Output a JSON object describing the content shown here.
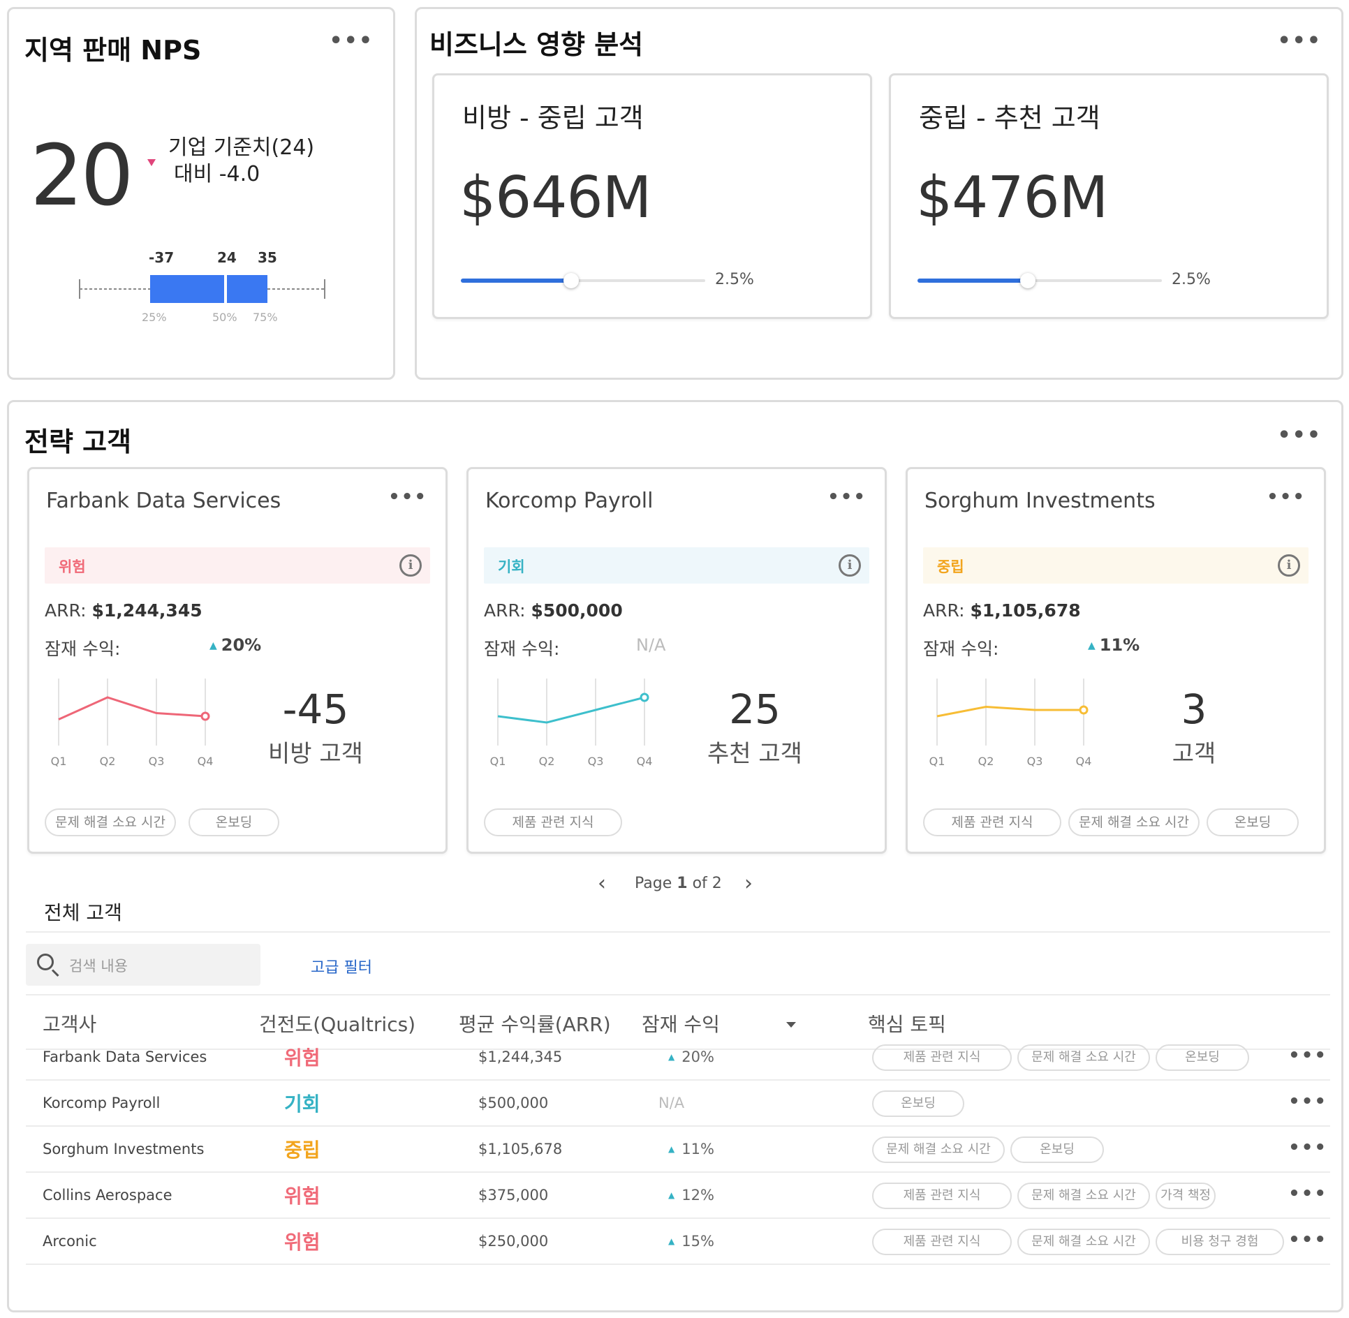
{
  "nps": {
    "title": "지역 판매 NPS",
    "score": "20",
    "compare_line1": "기업 기준치(24)",
    "compare_line2": "대비 -4.0",
    "box_labels": [
      "-37",
      "24",
      "35"
    ],
    "box_pct_labels": [
      "25%",
      "50%",
      "75%"
    ],
    "box_colors": {
      "box": "#3a78f2",
      "whisker": "#888888"
    }
  },
  "business": {
    "title": "비즈니스 영향 분석",
    "cards": [
      {
        "subtitle": "비방 - 중립 고객",
        "value": "$646M",
        "slider_value": "2.5%",
        "slider_fill": 0.45
      },
      {
        "subtitle": "중립 - 추천 고객",
        "value": "$476M",
        "slider_value": "2.5%",
        "slider_fill": 0.45
      }
    ]
  },
  "strategic": {
    "title": "전략 고객",
    "accounts": [
      {
        "name": "Farbank Data Services",
        "status": "위험",
        "status_color": "#f06a78",
        "status_bg": "#fdf0f1",
        "arr_label": "ARR:",
        "arr_value": "$1,244,345",
        "potential_label": "잠재 수익:",
        "potential_value": "20%",
        "chart_color": "#ee6677",
        "kpi_value": "-45",
        "kpi_label": "비방 고객",
        "topics": [
          "문제 해결 소요 시간",
          "온보딩"
        ]
      },
      {
        "name": "Korcomp Payroll",
        "status": "기회",
        "status_color": "#35b2c4",
        "status_bg": "#eef7fb",
        "arr_label": "ARR:",
        "arr_value": "$500,000",
        "potential_label": "잠재 수익:",
        "potential_value": "N/A",
        "chart_color": "#3dbfcc",
        "kpi_value": "25",
        "kpi_label": "추천 고객",
        "topics": [
          "제품 관련 지식"
        ]
      },
      {
        "name": "Sorghum Investments",
        "status": "중립",
        "status_color": "#f2a41c",
        "status_bg": "#fdf8ec",
        "arr_label": "ARR:",
        "arr_value": "$1,105,678",
        "potential_label": "잠재 수익:",
        "potential_value": "11%",
        "chart_color": "#f7bd35",
        "kpi_value": "3",
        "kpi_label": "고객",
        "topics": [
          "제품 관련 지식",
          "문제 해결 소요 시간",
          "온보딩"
        ]
      }
    ],
    "chart_data": [
      {
        "type": "line",
        "categories": [
          "Q1",
          "Q2",
          "Q3",
          "Q4"
        ],
        "values": [
          0.35,
          0.7,
          0.45,
          0.4
        ],
        "title": "Farbank Data Services"
      },
      {
        "type": "line",
        "categories": [
          "Q1",
          "Q2",
          "Q3",
          "Q4"
        ],
        "values": [
          0.4,
          0.3,
          0.5,
          0.7
        ],
        "title": "Korcomp Payroll"
      },
      {
        "type": "line",
        "categories": [
          "Q1",
          "Q2",
          "Q3",
          "Q4"
        ],
        "values": [
          0.4,
          0.55,
          0.5,
          0.5
        ],
        "title": "Sorghum Investments"
      }
    ],
    "pager": {
      "prefix": "Page",
      "current": "1",
      "sep": "of",
      "total": "2"
    },
    "all_customers": {
      "title": "전체 고객",
      "search_placeholder": "검색 내용",
      "advanced_filter": "고급 필터",
      "columns": [
        "고객사",
        "건전도(Qualtrics)",
        "평균 수익률(ARR)",
        "잠재 수익",
        "핵심 토픽"
      ],
      "rows": [
        {
          "name": "Farbank Data Services",
          "health": "위험",
          "health_color": "#f06a78",
          "arr": "$1,244,345",
          "potential": "20%",
          "has_arrow": true,
          "topics": [
            "제품 관련 지식",
            "문제 해결 소요 시간",
            "온보딩"
          ]
        },
        {
          "name": "Korcomp Payroll",
          "health": "기회",
          "health_color": "#35b2c4",
          "arr": "$500,000",
          "potential": "N/A",
          "has_arrow": false,
          "topics": [
            "온보딩"
          ]
        },
        {
          "name": "Sorghum Investments",
          "health": "중립",
          "health_color": "#f2a41c",
          "arr": "$1,105,678",
          "potential": "11%",
          "has_arrow": true,
          "topics": [
            "문제 해결 소요 시간",
            "온보딩"
          ]
        },
        {
          "name": "Collins Aerospace",
          "health": "위험",
          "health_color": "#f06a78",
          "arr": "$375,000",
          "potential": "12%",
          "has_arrow": true,
          "topics": [
            "제품 관련 지식",
            "문제 해결 소요 시간",
            "가격 책정"
          ]
        },
        {
          "name": "Arconic",
          "health": "위험",
          "health_color": "#f06a78",
          "arr": "$250,000",
          "potential": "15%",
          "has_arrow": true,
          "topics": [
            "제품 관련 지식",
            "문제 해결 소요 시간",
            "비용 청구 경험"
          ]
        }
      ]
    }
  },
  "menu_icon": "more-horizontal-icon"
}
